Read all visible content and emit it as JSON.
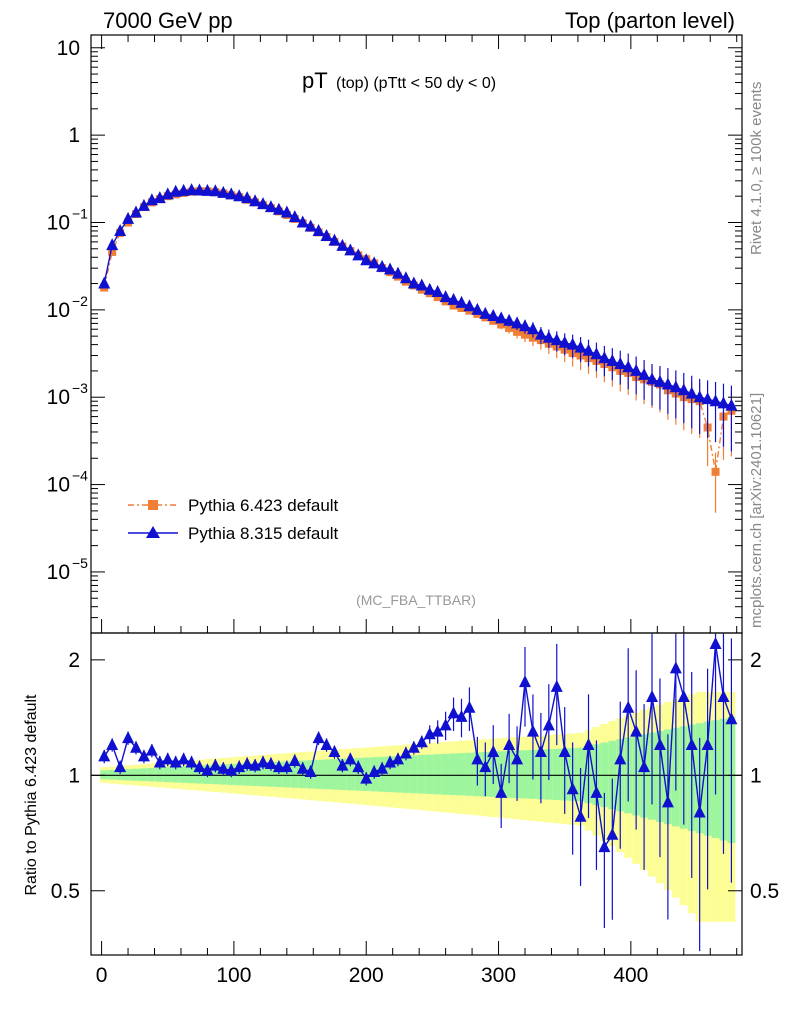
{
  "header": {
    "left": "7000 GeV pp",
    "right": "Top (parton level)",
    "plot_title_main": "pT",
    "plot_title_sub": "(top)  (pTtt < 50 dy < 0)",
    "analysis_id": "(MC_FBA_TTBAR)",
    "side_rivet": "Rivet 4.1.0, ≥ 100k events",
    "side_source": "mcplots.cern.ch [arXiv:2401.10621]",
    "ratio_ylabel": "Ratio to Pythia 6.423 default"
  },
  "colors": {
    "py6": "#f07f35",
    "py8": "#1010d0",
    "band_green": "#9df59d",
    "band_yellow": "#fdfd96"
  },
  "chart_data": {
    "type": "line",
    "title": "pT (top) (pTtt < 50 dy < 0)",
    "xlabel": "",
    "ylabel": "",
    "xlim": [
      -8,
      484
    ],
    "ylim": [
      2e-06,
      14
    ],
    "yscale": "log",
    "ratio_ylim": [
      0.34,
      2.35
    ],
    "x_ticks": [
      "0",
      "100",
      "200",
      "300",
      "400"
    ],
    "y_ticks": [
      "10",
      "1",
      "10^-1",
      "10^-2",
      "10^-3",
      "10^-4",
      "10^-5"
    ],
    "ratio_ticks": [
      "2",
      "1",
      "0.5"
    ],
    "legend": [
      "Pythia 6.423 default",
      "Pythia 8.315 default"
    ],
    "legend_position": "lower-left",
    "x": [
      2,
      8,
      14,
      20,
      26,
      32,
      38,
      44,
      50,
      56,
      62,
      68,
      74,
      80,
      86,
      92,
      98,
      104,
      110,
      116,
      122,
      128,
      134,
      140,
      146,
      152,
      158,
      164,
      170,
      176,
      182,
      188,
      194,
      200,
      206,
      212,
      218,
      224,
      230,
      236,
      242,
      248,
      254,
      260,
      266,
      272,
      278,
      284,
      290,
      296,
      302,
      308,
      314,
      320,
      326,
      332,
      338,
      344,
      350,
      356,
      362,
      368,
      374,
      380,
      386,
      392,
      398,
      404,
      410,
      416,
      422,
      428,
      434,
      440,
      446,
      452,
      458,
      464,
      470,
      476
    ],
    "series": [
      {
        "name": "Pythia 6.423 default",
        "values": [
          0.018,
          0.046,
          0.076,
          0.1,
          0.125,
          0.15,
          0.17,
          0.185,
          0.2,
          0.21,
          0.218,
          0.225,
          0.228,
          0.227,
          0.222,
          0.215,
          0.205,
          0.195,
          0.182,
          0.17,
          0.158,
          0.146,
          0.134,
          0.122,
          0.11,
          0.098,
          0.087,
          0.077,
          0.068,
          0.06,
          0.053,
          0.047,
          0.042,
          0.038,
          0.034,
          0.03,
          0.027,
          0.024,
          0.021,
          0.019,
          0.017,
          0.0155,
          0.014,
          0.0125,
          0.0112,
          0.0105,
          0.0098,
          0.009,
          0.0082,
          0.0075,
          0.0068,
          0.0062,
          0.0056,
          0.0052,
          0.0048,
          0.0045,
          0.0041,
          0.0038,
          0.0035,
          0.0032,
          0.003,
          0.0028,
          0.0026,
          0.0024,
          0.0022,
          0.002,
          0.0019,
          0.0017,
          0.0016,
          0.0015,
          0.0014,
          0.0012,
          0.0011,
          0.001,
          0.00095,
          0.0009,
          0.00045,
          0.00014,
          0.0006,
          0.0007
        ]
      },
      {
        "name": "Pythia 8.315 default",
        "values": [
          0.02,
          0.055,
          0.08,
          0.11,
          0.13,
          0.155,
          0.18,
          0.19,
          0.21,
          0.225,
          0.23,
          0.235,
          0.232,
          0.23,
          0.228,
          0.218,
          0.21,
          0.2,
          0.19,
          0.175,
          0.162,
          0.15,
          0.14,
          0.13,
          0.115,
          0.1,
          0.09,
          0.08,
          0.07,
          0.062,
          0.054,
          0.048,
          0.042,
          0.037,
          0.034,
          0.031,
          0.029,
          0.026,
          0.023,
          0.02,
          0.019,
          0.017,
          0.016,
          0.014,
          0.013,
          0.012,
          0.011,
          0.01,
          0.009,
          0.0085,
          0.008,
          0.0075,
          0.007,
          0.0065,
          0.006,
          0.0052,
          0.0048,
          0.0045,
          0.0042,
          0.004,
          0.0037,
          0.0034,
          0.0031,
          0.0028,
          0.0026,
          0.0024,
          0.0022,
          0.002,
          0.0018,
          0.0016,
          0.0015,
          0.0014,
          0.0013,
          0.0012,
          0.0011,
          0.001,
          0.00095,
          0.0009,
          0.00085,
          0.0008
        ]
      }
    ],
    "ratio": [
      1.12,
      1.2,
      1.05,
      1.25,
      1.18,
      1.12,
      1.16,
      1.08,
      1.1,
      1.08,
      1.1,
      1.08,
      1.05,
      1.03,
      1.06,
      1.04,
      1.03,
      1.05,
      1.07,
      1.06,
      1.08,
      1.07,
      1.05,
      1.05,
      1.09,
      1.04,
      1.02,
      1.25,
      1.2,
      1.15,
      1.06,
      1.1,
      1.05,
      0.98,
      1.02,
      1.04,
      1.08,
      1.1,
      1.14,
      1.18,
      1.22,
      1.28,
      1.3,
      1.35,
      1.45,
      1.42,
      1.5,
      1.1,
      1.05,
      1.15,
      0.9,
      1.2,
      1.1,
      1.75,
      1.3,
      1.15,
      1.35,
      1.7,
      1.15,
      0.92,
      0.78,
      1.2,
      0.9,
      0.65,
      0.7,
      1.1,
      1.5,
      1.3,
      1.05,
      1.6,
      1.2,
      0.85,
      1.9,
      1.6,
      1.2,
      0.8,
      1.2,
      2.2,
      1.6,
      1.4
    ]
  }
}
